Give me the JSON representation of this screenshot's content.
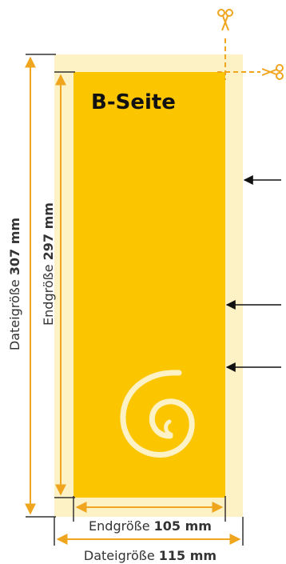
{
  "side_title": "B-Seite",
  "vertical": {
    "file_size": {
      "prefix": "Dateigröße ",
      "value": "307 mm"
    },
    "final_size": {
      "prefix": "Endgröße ",
      "value": "297 mm"
    }
  },
  "horizontal": {
    "final_size": {
      "prefix": "Endgröße ",
      "value": "105 mm"
    },
    "file_size": {
      "prefix": "Dateigröße ",
      "value": "115 mm"
    }
  },
  "colors": {
    "panel": "#fbc600",
    "bleed": "#fdf1c6",
    "dimension": "#f0a51f",
    "cut_line": "#f0a51f",
    "arrow": "#111111",
    "label": "#333333"
  },
  "icons": [
    "scissors-icon",
    "scissors-icon",
    "spiral-logo-icon"
  ]
}
